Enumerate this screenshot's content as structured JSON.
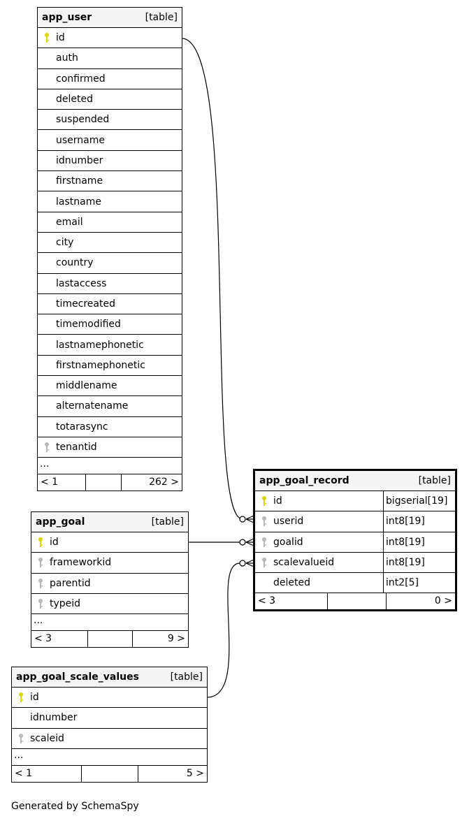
{
  "tables": [
    {
      "id": "app_user",
      "name": "app_user",
      "kind": "[table]",
      "focus": false,
      "columns": [
        {
          "name": "id",
          "key": "pk"
        },
        {
          "name": "auth"
        },
        {
          "name": "confirmed"
        },
        {
          "name": "deleted"
        },
        {
          "name": "suspended"
        },
        {
          "name": "username"
        },
        {
          "name": "idnumber"
        },
        {
          "name": "firstname"
        },
        {
          "name": "lastname"
        },
        {
          "name": "email"
        },
        {
          "name": "city"
        },
        {
          "name": "country"
        },
        {
          "name": "lastaccess"
        },
        {
          "name": "timecreated"
        },
        {
          "name": "timemodified"
        },
        {
          "name": "lastnamephonetic"
        },
        {
          "name": "firstnamephonetic"
        },
        {
          "name": "middlename"
        },
        {
          "name": "alternatename"
        },
        {
          "name": "totarasync"
        },
        {
          "name": "tenantid",
          "key": "fk"
        }
      ],
      "more": "...",
      "parents": "< 1",
      "children": "262 >"
    },
    {
      "id": "app_goal",
      "name": "app_goal",
      "kind": "[table]",
      "focus": false,
      "columns": [
        {
          "name": "id",
          "key": "pk"
        },
        {
          "name": "frameworkid",
          "key": "fk"
        },
        {
          "name": "parentid",
          "key": "fk"
        },
        {
          "name": "typeid",
          "key": "fk"
        }
      ],
      "more": "...",
      "parents": "< 3",
      "children": "9 >"
    },
    {
      "id": "app_goal_scale_values",
      "name": "app_goal_scale_values",
      "kind": "[table]",
      "focus": false,
      "columns": [
        {
          "name": "id",
          "key": "pk"
        },
        {
          "name": "idnumber"
        },
        {
          "name": "scaleid",
          "key": "fk"
        }
      ],
      "more": "...",
      "parents": "< 1",
      "children": "5 >"
    },
    {
      "id": "app_goal_record",
      "name": "app_goal_record",
      "kind": "[table]",
      "focus": true,
      "columns": [
        {
          "name": "id",
          "key": "pk",
          "type": "bigserial[19]"
        },
        {
          "name": "userid",
          "key": "fk",
          "type": "int8[19]"
        },
        {
          "name": "goalid",
          "key": "fk",
          "type": "int8[19]"
        },
        {
          "name": "scalevalueid",
          "key": "fk",
          "type": "int8[19]"
        },
        {
          "name": "deleted",
          "type": "int2[5]"
        }
      ],
      "parents": "< 3",
      "children": "0 >"
    }
  ],
  "relationships": [
    {
      "from": "app_user.id",
      "to": "app_goal_record.userid"
    },
    {
      "from": "app_goal.id",
      "to": "app_goal_record.goalid"
    },
    {
      "from": "app_goal_scale_values.id",
      "to": "app_goal_record.scalevalueid"
    }
  ],
  "colors": {
    "pk": "#d8d800",
    "fk": "#b8b8b8"
  },
  "footer": "Generated by SchemaSpy"
}
